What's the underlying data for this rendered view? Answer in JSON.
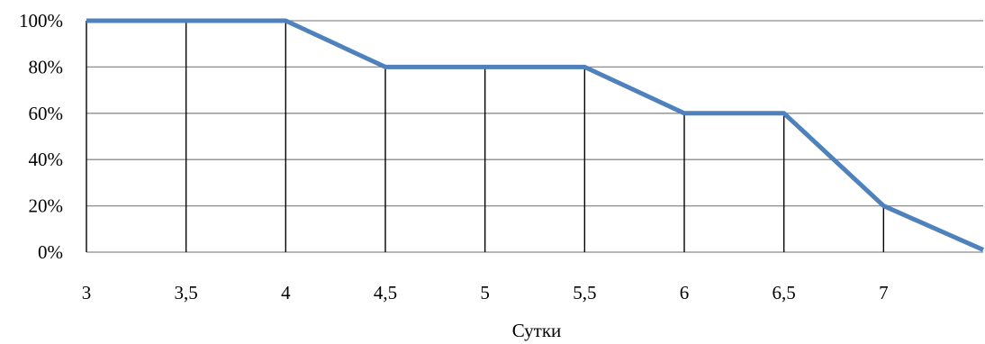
{
  "chart_data": {
    "type": "line",
    "title": "",
    "xlabel": "Сутки",
    "ylabel": "",
    "x": [
      3,
      3.5,
      4,
      4.5,
      5,
      5.5,
      6,
      6.5,
      7,
      7.5
    ],
    "x_tick_labels": [
      "3",
      "3,5",
      "4",
      "4,5",
      "5",
      "5,5",
      "6",
      "6,5",
      "7"
    ],
    "y_tick_labels": [
      "0%",
      "20%",
      "40%",
      "60%",
      "80%",
      "100%"
    ],
    "xlim": [
      3,
      7.5
    ],
    "ylim": [
      0,
      100
    ],
    "y_unit": "%",
    "grid": "horizontal",
    "drop_lines": true,
    "legend": "none",
    "series": [
      {
        "color": "#4f81bd",
        "values": [
          100,
          100,
          100,
          80,
          80,
          80,
          60,
          60,
          20,
          1
        ]
      }
    ]
  }
}
